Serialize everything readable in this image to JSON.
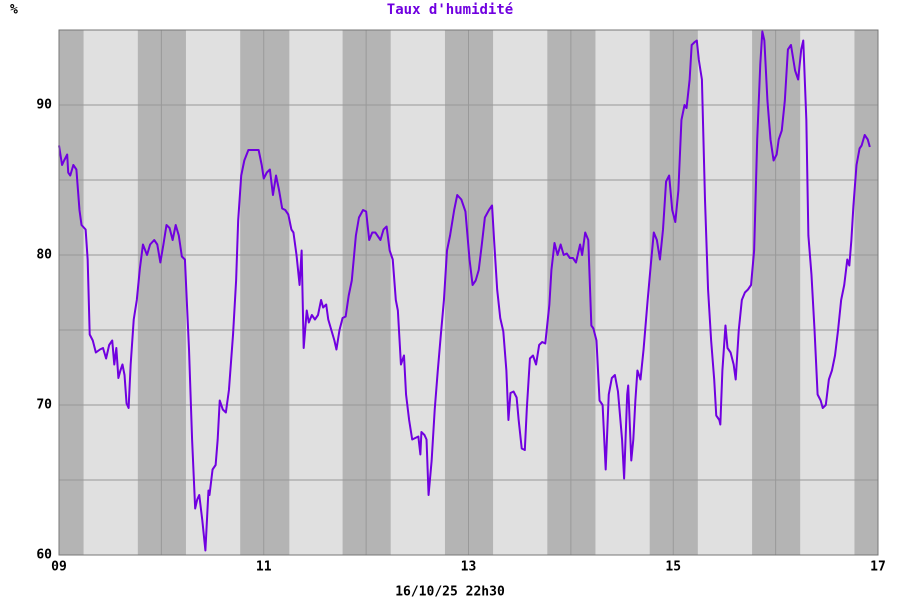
{
  "chart_data": {
    "type": "line",
    "title": "Taux d'humidité",
    "y_unit": "%",
    "footer": "16/10/25 22h30",
    "xlim": [
      9,
      17
    ],
    "ylim": [
      60,
      95
    ],
    "xticks": [
      {
        "value": 9,
        "label": "09"
      },
      11,
      13,
      15,
      17
    ],
    "yticks": [
      60,
      70,
      80,
      90
    ],
    "grid": true,
    "night_bands": [
      [
        9,
        9.24
      ],
      [
        9.77,
        10.24
      ],
      [
        10.77,
        11.25
      ],
      [
        11.77,
        12.24
      ],
      [
        12.77,
        13.24
      ],
      [
        13.77,
        14.24
      ],
      [
        14.77,
        15.24
      ],
      [
        15.77,
        16.24
      ],
      [
        16.77,
        17
      ]
    ],
    "x": [
      9.0,
      9.03,
      9.05,
      9.08,
      9.09,
      9.11,
      9.14,
      9.17,
      9.2,
      9.22,
      9.26,
      9.28,
      9.3,
      9.33,
      9.36,
      9.4,
      9.43,
      9.46,
      9.49,
      9.52,
      9.54,
      9.56,
      9.58,
      9.6,
      9.62,
      9.64,
      9.66,
      9.68,
      9.7,
      9.73,
      9.76,
      9.79,
      9.82,
      9.86,
      9.89,
      9.93,
      9.96,
      9.99,
      10.02,
      10.05,
      10.08,
      10.11,
      10.14,
      10.17,
      10.2,
      10.23,
      10.27,
      10.3,
      10.33,
      10.35,
      10.37,
      10.4,
      10.43,
      10.46,
      10.47,
      10.5,
      10.53,
      10.55,
      10.57,
      10.6,
      10.63,
      10.66,
      10.7,
      10.73,
      10.75,
      10.78,
      10.81,
      10.85,
      10.89,
      10.92,
      10.95,
      10.98,
      11.0,
      11.03,
      11.06,
      11.09,
      11.12,
      11.15,
      11.18,
      11.21,
      11.24,
      11.27,
      11.29,
      11.32,
      11.35,
      11.37,
      11.39,
      11.42,
      11.44,
      11.47,
      11.5,
      11.53,
      11.56,
      11.58,
      11.61,
      11.63,
      11.66,
      11.69,
      11.71,
      11.74,
      11.77,
      11.8,
      11.83,
      11.86,
      11.9,
      11.93,
      11.97,
      12.0,
      12.03,
      12.06,
      12.09,
      12.12,
      12.14,
      12.17,
      12.2,
      12.23,
      12.26,
      12.29,
      12.31,
      12.34,
      12.37,
      12.39,
      12.42,
      12.45,
      12.48,
      12.51,
      12.53,
      12.54,
      12.57,
      12.59,
      12.61,
      12.64,
      12.67,
      12.7,
      12.73,
      12.76,
      12.79,
      12.82,
      12.86,
      12.89,
      12.93,
      12.95,
      12.97,
      13.01,
      13.04,
      13.07,
      13.1,
      13.13,
      13.16,
      13.2,
      13.23,
      13.25,
      13.28,
      13.31,
      13.34,
      13.37,
      13.39,
      13.41,
      13.44,
      13.47,
      13.49,
      13.52,
      13.55,
      13.57,
      13.6,
      13.63,
      13.66,
      13.69,
      13.72,
      13.75,
      13.79,
      13.81,
      13.84,
      13.87,
      13.9,
      13.93,
      13.96,
      13.99,
      14.02,
      14.05,
      14.09,
      14.11,
      14.14,
      14.17,
      14.2,
      14.22,
      14.25,
      14.28,
      14.31,
      14.34,
      14.37,
      14.4,
      14.43,
      14.46,
      14.5,
      14.52,
      14.55,
      14.56,
      14.59,
      14.61,
      14.63,
      14.65,
      14.68,
      14.71,
      14.75,
      14.78,
      14.81,
      14.84,
      14.87,
      14.9,
      14.93,
      14.96,
      14.99,
      15.02,
      15.05,
      15.08,
      15.11,
      15.13,
      15.16,
      15.18,
      15.21,
      15.23,
      15.25,
      15.28,
      15.31,
      15.34,
      15.37,
      15.4,
      15.42,
      15.45,
      15.46,
      15.48,
      15.51,
      15.53,
      15.56,
      15.59,
      15.61,
      15.64,
      15.67,
      15.7,
      15.73,
      15.76,
      15.79,
      15.82,
      15.85,
      15.87,
      15.89,
      15.92,
      15.95,
      15.98,
      16.01,
      16.03,
      16.06,
      16.09,
      16.12,
      16.15,
      16.19,
      16.22,
      16.25,
      16.27,
      16.3,
      16.32,
      16.35,
      16.38,
      16.41,
      16.44,
      16.46,
      16.49,
      16.52,
      16.55,
      16.58,
      16.61,
      16.64,
      16.67,
      16.7,
      16.72,
      16.74,
      16.76,
      16.79,
      16.82,
      16.84,
      16.87,
      16.9,
      16.92
    ],
    "series": [
      {
        "color": "#7000e0",
        "values": [
          87.3,
          86.0,
          86.3,
          86.7,
          85.5,
          85.3,
          86.0,
          85.7,
          83.0,
          82.0,
          81.7,
          79.7,
          74.7,
          74.3,
          73.5,
          73.7,
          73.8,
          73.1,
          74.0,
          74.3,
          72.7,
          73.8,
          71.8,
          72.3,
          72.7,
          72.0,
          70.1,
          69.8,
          72.7,
          75.7,
          77.0,
          79.1,
          80.7,
          80.0,
          80.7,
          81.0,
          80.7,
          79.5,
          80.7,
          82.0,
          81.8,
          81.0,
          82.0,
          81.3,
          79.9,
          79.7,
          73.7,
          67.7,
          63.1,
          63.7,
          64.0,
          62.3,
          60.3,
          64.3,
          64.0,
          65.7,
          66.0,
          67.7,
          70.3,
          69.7,
          69.5,
          71.0,
          74.7,
          78.3,
          82.3,
          85.3,
          86.3,
          87.0,
          87.0,
          87.0,
          87.0,
          86.0,
          85.1,
          85.5,
          85.7,
          84.0,
          85.3,
          84.3,
          83.1,
          83.0,
          82.7,
          81.7,
          81.5,
          80.0,
          78.0,
          80.3,
          73.8,
          76.3,
          75.5,
          76.0,
          75.7,
          76.0,
          77.0,
          76.5,
          76.7,
          75.7,
          75.0,
          74.3,
          73.7,
          75.0,
          75.8,
          75.9,
          77.3,
          78.3,
          81.3,
          82.5,
          83.0,
          82.9,
          81.0,
          81.5,
          81.5,
          81.2,
          81.0,
          81.7,
          81.9,
          80.3,
          79.7,
          77.0,
          76.3,
          72.7,
          73.3,
          70.7,
          69.0,
          67.7,
          67.8,
          67.9,
          66.7,
          68.2,
          68.0,
          67.7,
          64.0,
          66.3,
          69.7,
          72.3,
          74.7,
          77.0,
          80.3,
          81.3,
          83.0,
          84.0,
          83.7,
          83.3,
          82.9,
          79.7,
          78.0,
          78.3,
          79.0,
          80.7,
          82.5,
          83.0,
          83.3,
          81.0,
          77.7,
          75.8,
          74.9,
          72.3,
          69.0,
          70.8,
          70.9,
          70.5,
          69.0,
          67.1,
          67.0,
          69.8,
          73.1,
          73.3,
          72.7,
          74.0,
          74.2,
          74.1,
          76.7,
          79.0,
          80.8,
          80.0,
          80.7,
          80.0,
          80.1,
          79.8,
          79.8,
          79.5,
          80.7,
          80.0,
          81.5,
          81.0,
          75.3,
          75.1,
          74.3,
          70.3,
          70.0,
          65.7,
          70.7,
          71.8,
          72.0,
          70.9,
          67.7,
          65.1,
          70.7,
          71.3,
          66.3,
          67.7,
          70.3,
          72.3,
          71.7,
          73.7,
          77.0,
          79.3,
          81.5,
          81.0,
          79.7,
          81.7,
          84.9,
          85.3,
          83.0,
          82.2,
          84.3,
          89.0,
          90.0,
          89.8,
          91.7,
          94.0,
          94.2,
          94.3,
          93.0,
          91.7,
          83.7,
          77.7,
          74.3,
          71.7,
          69.3,
          69.0,
          68.7,
          72.3,
          75.3,
          73.8,
          73.5,
          72.7,
          71.7,
          75.0,
          77.0,
          77.5,
          77.7,
          78.0,
          80.3,
          87.7,
          92.7,
          94.9,
          94.3,
          90.3,
          87.7,
          86.3,
          86.7,
          87.7,
          88.3,
          90.3,
          93.7,
          94.0,
          92.3,
          91.7,
          93.7,
          94.3,
          89.0,
          81.3,
          78.7,
          75.0,
          70.7,
          70.3,
          69.8,
          70.0,
          71.7,
          72.3,
          73.3,
          75.0,
          77.0,
          78.0,
          79.7,
          79.3,
          81.0,
          83.3,
          86.0,
          87.1,
          87.3,
          88.0,
          87.7,
          87.2
        ]
      }
    ]
  }
}
